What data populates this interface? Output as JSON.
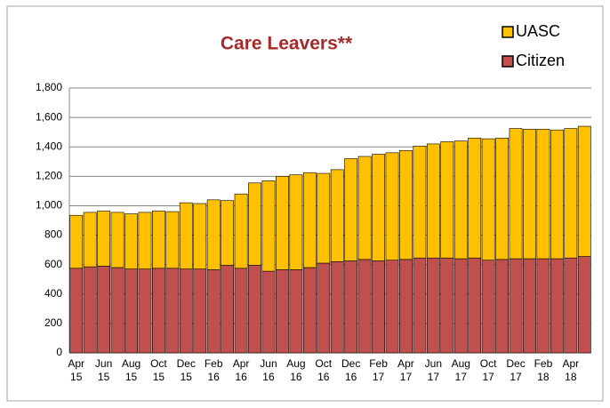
{
  "chart_data": {
    "type": "stacked_bar",
    "title": "Care Leavers**",
    "categories": [
      "Apr 15",
      null,
      "Jun 15",
      null,
      "Aug 15",
      null,
      "Oct 15",
      null,
      "Dec 15",
      null,
      "Feb 16",
      null,
      "Apr 16",
      null,
      "Jun 16",
      null,
      "Aug 16",
      null,
      "Oct 16",
      null,
      "Dec 16",
      null,
      "Feb 17",
      null,
      "Apr 17",
      null,
      "Jun 17",
      null,
      "Aug 17",
      null,
      "Oct 17",
      null,
      "Dec 17",
      null,
      "Feb 18",
      null,
      "Apr 18",
      null
    ],
    "series": [
      {
        "name": "Citizen",
        "color": "#c0504d",
        "values": [
          575,
          585,
          590,
          580,
          570,
          570,
          575,
          575,
          570,
          570,
          565,
          595,
          575,
          595,
          555,
          565,
          565,
          580,
          610,
          620,
          625,
          635,
          625,
          630,
          635,
          645,
          645,
          645,
          640,
          645,
          630,
          635,
          640,
          640,
          640,
          640,
          645,
          655
        ]
      },
      {
        "name": "UASC",
        "color": "#ffc000",
        "values": [
          360,
          370,
          375,
          375,
          375,
          385,
          390,
          385,
          450,
          445,
          475,
          440,
          505,
          560,
          615,
          635,
          645,
          645,
          610,
          625,
          695,
          700,
          725,
          730,
          740,
          760,
          775,
          790,
          800,
          815,
          825,
          825,
          885,
          880,
          880,
          875,
          880,
          885
        ]
      }
    ],
    "ylim": [
      0,
      1800
    ],
    "yticks": [
      0,
      200,
      400,
      600,
      800,
      {
        "value": 1000,
        "label": "1,000"
      },
      {
        "value": 1200,
        "label": "1,200"
      },
      {
        "value": 1400,
        "label": "1,400"
      },
      {
        "value": 1600,
        "label": "1,600"
      },
      {
        "value": 1800,
        "label": "1,800"
      }
    ],
    "grid": true
  }
}
